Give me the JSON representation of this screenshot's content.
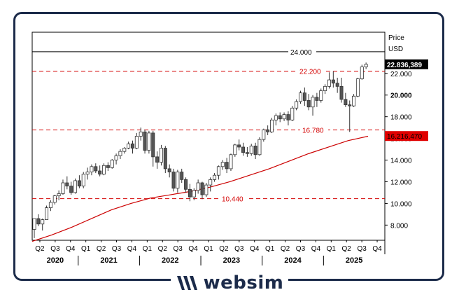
{
  "brand": {
    "name": "websim"
  },
  "colors": {
    "bull": "#ffffff",
    "bear": "#555555",
    "ma": "#cc0000",
    "level": "#d40000",
    "last_price_bg": "#000000",
    "ma_label_bg": "#e00000",
    "frame": "#1c2b4a"
  },
  "chart_data": {
    "type": "candlestick",
    "price_axis": {
      "title": "Price",
      "unit": "USD",
      "ticks": [
        "8.000",
        "10.000",
        "12.000",
        "14.000",
        "16.000",
        "18.000",
        "20.000",
        "22.000"
      ],
      "tick_values": [
        8,
        10,
        12,
        14,
        16,
        18,
        20,
        22
      ],
      "ylim": [
        6.6,
        25.8
      ]
    },
    "time_axis": {
      "quarter_ticks": [
        "Q2",
        "Q3",
        "Q4",
        "Q1",
        "Q2",
        "Q3",
        "Q4",
        "Q1",
        "Q2",
        "Q3",
        "Q4",
        "Q1",
        "Q2",
        "Q3",
        "Q4",
        "Q1",
        "Q2",
        "Q3",
        "Q4",
        "Q1",
        "Q2",
        "Q3",
        "Q4"
      ],
      "years": [
        "2020",
        "2021",
        "2022",
        "2023",
        "2024",
        "2025"
      ]
    },
    "levels": [
      {
        "label": "24.000",
        "value": 24.0,
        "style": "solid",
        "color": "#000000"
      },
      {
        "label": "22.200",
        "value": 22.2,
        "style": "dashed",
        "color": "#d40000"
      },
      {
        "label": "16.780",
        "value": 16.78,
        "style": "dashed",
        "color": "#d40000"
      },
      {
        "label": "10.440",
        "value": 10.44,
        "style": "dashed",
        "color": "#d40000"
      }
    ],
    "last_price": {
      "label": "22.836,389",
      "value": 22.84
    },
    "moving_average": {
      "label": "16.216,470",
      "value": 16.22,
      "points": [
        [
          0,
          6.5
        ],
        [
          6,
          7.1
        ],
        [
          12,
          7.8
        ],
        [
          18,
          8.6
        ],
        [
          24,
          9.4
        ],
        [
          30,
          10.0
        ],
        [
          36,
          10.5
        ],
        [
          42,
          10.8
        ],
        [
          48,
          11.1
        ],
        [
          54,
          11.5
        ],
        [
          60,
          12.0
        ],
        [
          66,
          12.6
        ],
        [
          72,
          13.2
        ],
        [
          78,
          13.9
        ],
        [
          84,
          14.6
        ],
        [
          90,
          15.2
        ],
        [
          96,
          15.8
        ],
        [
          102,
          16.2
        ]
      ]
    },
    "candles": [
      {
        "o": 7.6,
        "h": 8.6,
        "l": 6.8,
        "c": 8.6
      },
      {
        "o": 8.6,
        "h": 9.0,
        "l": 7.9,
        "c": 8.1
      },
      {
        "o": 8.1,
        "h": 8.6,
        "l": 7.5,
        "c": 8.5
      },
      {
        "o": 8.5,
        "h": 9.8,
        "l": 8.5,
        "c": 9.6
      },
      {
        "o": 9.6,
        "h": 10.3,
        "l": 9.3,
        "c": 10.1
      },
      {
        "o": 10.1,
        "h": 10.8,
        "l": 9.9,
        "c": 10.7
      },
      {
        "o": 10.7,
        "h": 11.2,
        "l": 10.3,
        "c": 10.9
      },
      {
        "o": 10.9,
        "h": 12.2,
        "l": 10.8,
        "c": 11.9
      },
      {
        "o": 11.9,
        "h": 12.5,
        "l": 11.3,
        "c": 11.6
      },
      {
        "o": 11.6,
        "h": 12.0,
        "l": 10.8,
        "c": 11.0
      },
      {
        "o": 11.0,
        "h": 12.3,
        "l": 10.9,
        "c": 12.1
      },
      {
        "o": 12.1,
        "h": 12.6,
        "l": 11.4,
        "c": 11.6
      },
      {
        "o": 11.6,
        "h": 12.9,
        "l": 11.4,
        "c": 12.7
      },
      {
        "o": 12.7,
        "h": 13.3,
        "l": 12.2,
        "c": 12.9
      },
      {
        "o": 12.9,
        "h": 13.6,
        "l": 12.6,
        "c": 13.4
      },
      {
        "o": 13.4,
        "h": 13.7,
        "l": 12.8,
        "c": 13.0
      },
      {
        "o": 13.0,
        "h": 13.5,
        "l": 12.5,
        "c": 12.7
      },
      {
        "o": 12.7,
        "h": 13.7,
        "l": 12.6,
        "c": 13.5
      },
      {
        "o": 13.5,
        "h": 13.8,
        "l": 13.0,
        "c": 13.3
      },
      {
        "o": 13.3,
        "h": 14.1,
        "l": 13.2,
        "c": 14.0
      },
      {
        "o": 14.0,
        "h": 14.6,
        "l": 13.6,
        "c": 14.4
      },
      {
        "o": 14.4,
        "h": 15.0,
        "l": 14.1,
        "c": 14.8
      },
      {
        "o": 14.8,
        "h": 15.2,
        "l": 14.6,
        "c": 15.1
      },
      {
        "o": 15.1,
        "h": 15.7,
        "l": 15.0,
        "c": 15.5
      },
      {
        "o": 15.5,
        "h": 15.8,
        "l": 14.6,
        "c": 15.1
      },
      {
        "o": 15.1,
        "h": 16.5,
        "l": 15.0,
        "c": 16.2
      },
      {
        "o": 16.2,
        "h": 17.0,
        "l": 15.8,
        "c": 16.6
      },
      {
        "o": 16.6,
        "h": 16.8,
        "l": 14.6,
        "c": 14.9
      },
      {
        "o": 14.9,
        "h": 16.7,
        "l": 14.6,
        "c": 16.5
      },
      {
        "o": 16.5,
        "h": 16.7,
        "l": 13.4,
        "c": 14.3
      },
      {
        "o": 14.3,
        "h": 14.8,
        "l": 13.2,
        "c": 13.8
      },
      {
        "o": 13.8,
        "h": 15.4,
        "l": 13.5,
        "c": 15.1
      },
      {
        "o": 15.1,
        "h": 15.3,
        "l": 12.8,
        "c": 13.2
      },
      {
        "o": 13.2,
        "h": 13.6,
        "l": 12.4,
        "c": 12.9
      },
      {
        "o": 12.9,
        "h": 13.2,
        "l": 11.1,
        "c": 11.4
      },
      {
        "o": 11.4,
        "h": 13.1,
        "l": 11.0,
        "c": 12.9
      },
      {
        "o": 12.9,
        "h": 13.2,
        "l": 11.9,
        "c": 12.2
      },
      {
        "o": 12.2,
        "h": 12.4,
        "l": 11.0,
        "c": 11.3
      },
      {
        "o": 11.3,
        "h": 11.8,
        "l": 10.2,
        "c": 10.6
      },
      {
        "o": 10.6,
        "h": 11.4,
        "l": 10.3,
        "c": 11.2
      },
      {
        "o": 11.2,
        "h": 12.2,
        "l": 10.9,
        "c": 11.9
      },
      {
        "o": 11.9,
        "h": 12.0,
        "l": 10.4,
        "c": 10.8
      },
      {
        "o": 10.8,
        "h": 11.9,
        "l": 10.6,
        "c": 11.7
      },
      {
        "o": 11.7,
        "h": 12.4,
        "l": 11.1,
        "c": 12.2
      },
      {
        "o": 12.2,
        "h": 12.8,
        "l": 12.0,
        "c": 12.6
      },
      {
        "o": 12.6,
        "h": 13.5,
        "l": 12.2,
        "c": 13.4
      },
      {
        "o": 13.4,
        "h": 14.0,
        "l": 13.1,
        "c": 13.8
      },
      {
        "o": 13.8,
        "h": 14.2,
        "l": 12.8,
        "c": 13.2
      },
      {
        "o": 13.2,
        "h": 14.6,
        "l": 13.0,
        "c": 14.5
      },
      {
        "o": 14.5,
        "h": 15.5,
        "l": 14.3,
        "c": 15.4
      },
      {
        "o": 15.4,
        "h": 15.9,
        "l": 14.9,
        "c": 15.2
      },
      {
        "o": 15.2,
        "h": 15.6,
        "l": 14.4,
        "c": 14.7
      },
      {
        "o": 14.7,
        "h": 15.2,
        "l": 14.3,
        "c": 14.6
      },
      {
        "o": 14.6,
        "h": 15.5,
        "l": 14.4,
        "c": 15.3
      },
      {
        "o": 15.3,
        "h": 15.6,
        "l": 14.1,
        "c": 14.5
      },
      {
        "o": 14.5,
        "h": 16.1,
        "l": 14.4,
        "c": 15.9
      },
      {
        "o": 15.9,
        "h": 16.9,
        "l": 15.7,
        "c": 16.8
      },
      {
        "o": 16.8,
        "h": 17.2,
        "l": 16.3,
        "c": 16.6
      },
      {
        "o": 16.6,
        "h": 17.9,
        "l": 16.5,
        "c": 17.7
      },
      {
        "o": 17.7,
        "h": 18.3,
        "l": 17.2,
        "c": 18.1
      },
      {
        "o": 18.1,
        "h": 18.4,
        "l": 17.5,
        "c": 17.8
      },
      {
        "o": 17.8,
        "h": 18.4,
        "l": 17.6,
        "c": 18.2
      },
      {
        "o": 18.2,
        "h": 18.5,
        "l": 17.2,
        "c": 17.7
      },
      {
        "o": 17.7,
        "h": 19.0,
        "l": 17.6,
        "c": 18.8
      },
      {
        "o": 18.8,
        "h": 19.6,
        "l": 18.6,
        "c": 19.4
      },
      {
        "o": 19.4,
        "h": 20.4,
        "l": 19.2,
        "c": 20.2
      },
      {
        "o": 20.2,
        "h": 20.7,
        "l": 19.0,
        "c": 19.5
      },
      {
        "o": 19.5,
        "h": 20.1,
        "l": 18.6,
        "c": 18.9
      },
      {
        "o": 18.9,
        "h": 20.0,
        "l": 18.1,
        "c": 19.8
      },
      {
        "o": 19.8,
        "h": 20.2,
        "l": 18.9,
        "c": 19.5
      },
      {
        "o": 19.5,
        "h": 20.6,
        "l": 19.3,
        "c": 20.4
      },
      {
        "o": 20.4,
        "h": 21.0,
        "l": 20.1,
        "c": 20.8
      },
      {
        "o": 20.8,
        "h": 22.1,
        "l": 20.6,
        "c": 21.4
      },
      {
        "o": 21.4,
        "h": 22.2,
        "l": 20.7,
        "c": 21.1
      },
      {
        "o": 21.1,
        "h": 21.6,
        "l": 20.2,
        "c": 20.8
      },
      {
        "o": 20.8,
        "h": 21.6,
        "l": 19.3,
        "c": 19.6
      },
      {
        "o": 19.6,
        "h": 20.2,
        "l": 18.9,
        "c": 19.1
      },
      {
        "o": 19.1,
        "h": 19.5,
        "l": 16.6,
        "c": 19.0
      },
      {
        "o": 19.0,
        "h": 20.1,
        "l": 18.9,
        "c": 19.9
      },
      {
        "o": 19.9,
        "h": 21.6,
        "l": 19.8,
        "c": 21.5
      },
      {
        "o": 21.5,
        "h": 22.8,
        "l": 21.4,
        "c": 22.6
      },
      {
        "o": 22.6,
        "h": 23.0,
        "l": 22.4,
        "c": 22.84
      }
    ]
  }
}
